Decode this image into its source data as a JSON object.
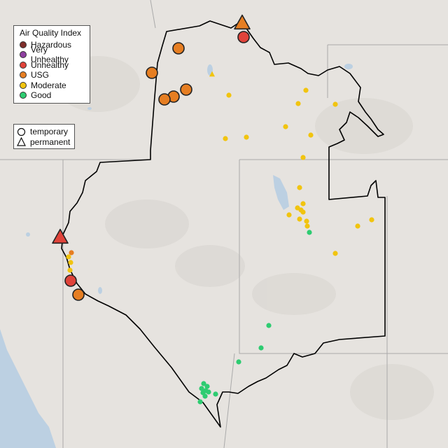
{
  "legend": {
    "title": "Air Quality Index",
    "categories": [
      {
        "label": "Hazardous",
        "color": "#7e2e2a"
      },
      {
        "label": "Very Unhealthy",
        "color": "#8e3fa0"
      },
      {
        "label": "Unhealthy",
        "color": "#e0433a"
      },
      {
        "label": "USG",
        "color": "#e67e22"
      },
      {
        "label": "Moderate",
        "color": "#f1c40f"
      },
      {
        "label": "Good",
        "color": "#2ecc71"
      }
    ]
  },
  "shape_legend": {
    "temporary": "temporary",
    "permanent": "permanent"
  }
}
